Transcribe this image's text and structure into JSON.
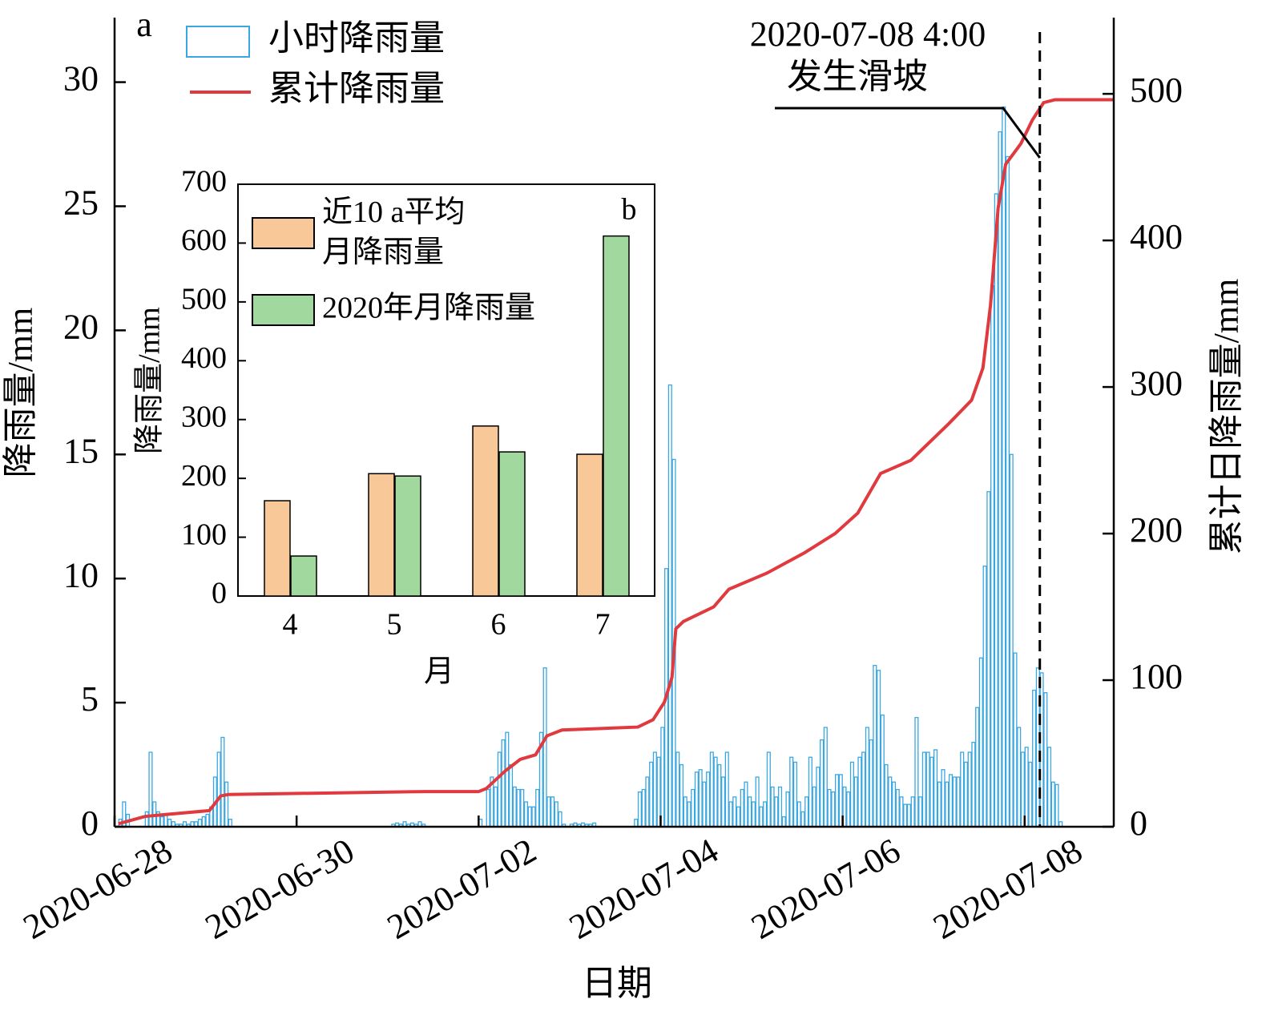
{
  "chart_data": [
    {
      "type": "bar",
      "panel_label": "a",
      "xlabel": "日期",
      "ylabel": "降雨量/mm",
      "y2label": "累计日降雨量/mm",
      "xlim": [
        0,
        263.5
      ],
      "ylim": [
        0,
        32.6
      ],
      "y2lim": [
        0,
        552
      ],
      "xticks": [
        {
          "value": 0,
          "label": "2020-06-28"
        },
        {
          "value": 48,
          "label": "2020-06-30"
        },
        {
          "value": 96,
          "label": "2020-07-02"
        },
        {
          "value": 144,
          "label": "2020-07-04"
        },
        {
          "value": 192,
          "label": "2020-07-06"
        },
        {
          "value": 240,
          "label": "2020-07-08"
        }
      ],
      "yticks": [
        0,
        5,
        10,
        15,
        20,
        25,
        30
      ],
      "y2ticks": [
        0,
        100,
        200,
        300,
        400,
        500
      ],
      "annotation": {
        "lines": [
          "2020-07-08 4:00",
          "发生滑坡"
        ],
        "x": 244
      },
      "series": [
        {
          "name": "小时降雨量",
          "type": "bar",
          "color": "#3aa7e0",
          "x": [
            0,
            1,
            2,
            3,
            4,
            5,
            6,
            7,
            8,
            9,
            10,
            11,
            12,
            13,
            14,
            15,
            16,
            17,
            18,
            19,
            20,
            21,
            22,
            23,
            24,
            25,
            26,
            27,
            28,
            29,
            30,
            31,
            32,
            33,
            34,
            35,
            36,
            37,
            38,
            39,
            40,
            41,
            42,
            43,
            44,
            45,
            46,
            47,
            48,
            49,
            50,
            51,
            52,
            53,
            54,
            55,
            56,
            57,
            58,
            59,
            60,
            61,
            62,
            63,
            64,
            65,
            66,
            67,
            68,
            69,
            70,
            71,
            72,
            73,
            74,
            75,
            76,
            77,
            78,
            79,
            80,
            81,
            82,
            83,
            84,
            85,
            86,
            87,
            88,
            89,
            90,
            91,
            92,
            93,
            94,
            95,
            96,
            97,
            98,
            99,
            100,
            101,
            102,
            103,
            104,
            105,
            106,
            107,
            108,
            109,
            110,
            111,
            112,
            113,
            114,
            115,
            116,
            117,
            118,
            119,
            120,
            121,
            122,
            123,
            124,
            125,
            126,
            127,
            128,
            129,
            130,
            131,
            132,
            133,
            134,
            135,
            136,
            137,
            138,
            139,
            140,
            141,
            142,
            143,
            144,
            145,
            146,
            147,
            148,
            149,
            150,
            151,
            152,
            153,
            154,
            155,
            156,
            157,
            158,
            159,
            160,
            161,
            162,
            163,
            164,
            165,
            166,
            167,
            168,
            169,
            170,
            171,
            172,
            173,
            174,
            175,
            176,
            177,
            178,
            179,
            180,
            181,
            182,
            183,
            184,
            185,
            186,
            187,
            188,
            189,
            190,
            191,
            192,
            193,
            194,
            195,
            196,
            197,
            198,
            199,
            200,
            201,
            202,
            203,
            204,
            205,
            206,
            207,
            208,
            209,
            210,
            211,
            212,
            213,
            214,
            215,
            216,
            217,
            218,
            219,
            220,
            221,
            222,
            223,
            224,
            225,
            226,
            227,
            228,
            229,
            230,
            231,
            232,
            233,
            234,
            235,
            236,
            237,
            238,
            239,
            240,
            241,
            242,
            243,
            244,
            245,
            246,
            247,
            248,
            249
          ],
          "values": [
            0,
            0.3,
            1.0,
            0.5,
            0,
            0,
            0,
            0,
            0.6,
            3.0,
            1.0,
            0.6,
            0.4,
            0.5,
            0.3,
            0.2,
            0.1,
            0.1,
            0.2,
            0.1,
            0.2,
            0.2,
            0.3,
            0.4,
            0.5,
            0.8,
            2.0,
            3.0,
            3.6,
            1.8,
            0.3,
            0,
            0,
            0,
            0,
            0,
            0,
            0,
            0,
            0,
            0,
            0,
            0,
            0,
            0,
            0,
            0,
            0,
            0,
            0,
            0,
            0,
            0,
            0,
            0,
            0,
            0,
            0,
            0,
            0,
            0,
            0,
            0,
            0,
            0,
            0,
            0,
            0,
            0,
            0,
            0,
            0,
            0,
            0.1,
            0.15,
            0.1,
            0.2,
            0.1,
            0.15,
            0.1,
            0.2,
            0.1,
            0,
            0,
            0,
            0,
            0,
            0,
            0,
            0,
            0,
            0,
            0,
            0,
            0,
            0,
            0.3,
            0,
            1.5,
            2.0,
            1.6,
            3.0,
            3.5,
            3.8,
            2.5,
            1.6,
            1.5,
            1.5,
            1.0,
            0.8,
            0.8,
            1.5,
            3.8,
            6.4,
            1.2,
            1.2,
            1.0,
            0.6,
            0.1,
            0,
            0.1,
            0.15,
            0.1,
            0.15,
            0.1,
            0.1,
            0.15,
            0,
            0,
            0,
            0,
            0,
            0,
            0,
            0,
            0,
            0,
            0.3,
            1.4,
            1.5,
            2.0,
            2.6,
            3.0,
            2.8,
            4.0,
            10.4,
            17.8,
            14.8,
            3.0,
            2.5,
            1.2,
            1.0,
            1.5,
            2.2,
            2.3,
            1.8,
            2.2,
            3.0,
            2.8,
            2.5,
            2.0,
            3.0,
            1.0,
            1.2,
            0.8,
            1.5,
            1.8,
            1.2,
            1.0,
            2.0,
            0.8,
            1.0,
            3.0,
            1.6,
            1.2,
            1.6,
            0.4,
            1.4,
            2.8,
            2.6,
            1.0,
            0.6,
            1.2,
            2.8,
            1.6,
            2.4,
            3.5,
            4.0,
            1.5,
            1.4,
            2.1,
            2.1,
            1.6,
            1.4,
            2.6,
            2.0,
            2.8,
            3.0,
            4.0,
            3.5,
            6.5,
            6.3,
            4.5,
            2.5,
            2.0,
            1.8,
            1.5,
            1.2,
            0.9,
            0.9,
            1.2,
            4.4,
            1.2,
            3.0,
            3.0,
            2.8,
            3.1,
            1.8,
            2.3,
            1.8,
            2.1,
            2.0,
            2.0,
            3.0,
            2.6,
            3.0,
            3.4,
            4.8,
            6.8,
            10.5,
            13.5,
            21.8,
            25.5,
            28.0,
            29.0,
            27.0,
            15.0,
            7.0,
            4.0,
            3.0,
            3.2,
            2.6,
            5.5,
            6.4,
            6.2,
            5.4,
            3.2,
            1.8,
            1.7,
            0.2
          ]
        },
        {
          "name": "累计降雨量",
          "type": "line",
          "axis": "y2",
          "color": "#e0393e",
          "x": [
            1,
            8,
            12,
            25,
            28,
            30,
            82,
            96,
            98,
            103,
            107,
            111,
            114,
            118,
            138,
            142,
            145,
            147,
            148,
            150,
            158,
            162,
            172,
            182,
            190,
            196,
            202,
            210,
            220,
            226,
            229,
            231,
            233,
            235,
            239,
            242,
            245,
            248,
            263.5
          ],
          "values": [
            2,
            7,
            8,
            11,
            21,
            22,
            24,
            24,
            26,
            38,
            46,
            49,
            62,
            66,
            68,
            73,
            85,
            102,
            135,
            140,
            150,
            162,
            173,
            187,
            200,
            214,
            241,
            250,
            275,
            291,
            313,
            356,
            422,
            452,
            466,
            482,
            494,
            496,
            496
          ]
        }
      ]
    },
    {
      "type": "bar",
      "panel_label": "b",
      "xlabel": "月",
      "ylabel": "降雨量/mm",
      "categories": [
        "4",
        "5",
        "6",
        "7"
      ],
      "ylim": [
        0,
        700
      ],
      "yticks": [
        0,
        100,
        200,
        300,
        400,
        500,
        600,
        700
      ],
      "series": [
        {
          "name": "近10 a平均\n月降雨量",
          "color": "#f8c899",
          "values": [
            162,
            208,
            289,
            241
          ]
        },
        {
          "name": "2020年月降雨量",
          "color": "#a0d89e",
          "values": [
            68,
            204,
            245,
            612
          ]
        }
      ]
    }
  ]
}
